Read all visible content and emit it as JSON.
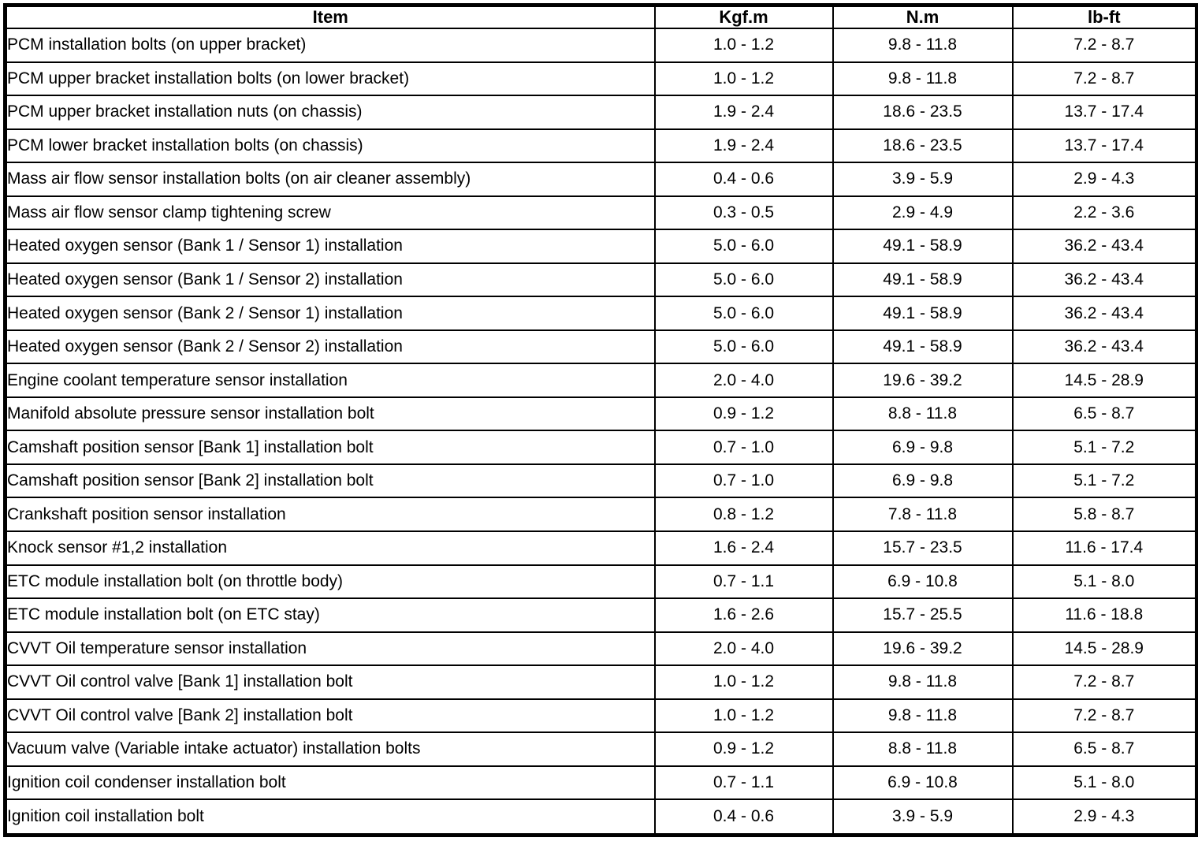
{
  "table": {
    "columns": [
      {
        "key": "item",
        "label": "Item"
      },
      {
        "key": "kgfm",
        "label": "Kgf.m"
      },
      {
        "key": "nm",
        "label": "N.m"
      },
      {
        "key": "lbft",
        "label": "lb-ft"
      }
    ],
    "rows": [
      {
        "item": "PCM installation bolts (on upper bracket)",
        "kgfm": "1.0 - 1.2",
        "nm": "9.8 - 11.8",
        "lbft": "7.2 - 8.7"
      },
      {
        "item": "PCM upper bracket installation bolts (on lower bracket)",
        "kgfm": "1.0 - 1.2",
        "nm": "9.8 - 11.8",
        "lbft": "7.2 - 8.7"
      },
      {
        "item": "PCM upper bracket installation nuts (on chassis)",
        "kgfm": "1.9 - 2.4",
        "nm": "18.6 - 23.5",
        "lbft": "13.7 - 17.4"
      },
      {
        "item": "PCM lower bracket installation bolts (on chassis)",
        "kgfm": "1.9 - 2.4",
        "nm": "18.6 - 23.5",
        "lbft": "13.7 - 17.4"
      },
      {
        "item": "Mass air flow sensor installation bolts (on air cleaner assembly)",
        "kgfm": "0.4 - 0.6",
        "nm": "3.9 - 5.9",
        "lbft": "2.9 - 4.3"
      },
      {
        "item": "Mass air flow sensor clamp tightening screw",
        "kgfm": "0.3 - 0.5",
        "nm": "2.9 - 4.9",
        "lbft": "2.2 - 3.6"
      },
      {
        "item": "Heated oxygen sensor (Bank 1 / Sensor 1) installation",
        "kgfm": "5.0 - 6.0",
        "nm": "49.1 - 58.9",
        "lbft": "36.2 - 43.4"
      },
      {
        "item": "Heated oxygen sensor (Bank 1 / Sensor 2) installation",
        "kgfm": "5.0 - 6.0",
        "nm": "49.1 - 58.9",
        "lbft": "36.2 - 43.4"
      },
      {
        "item": "Heated oxygen sensor (Bank 2 / Sensor 1) installation",
        "kgfm": "5.0 - 6.0",
        "nm": "49.1 - 58.9",
        "lbft": "36.2 - 43.4"
      },
      {
        "item": "Heated oxygen sensor (Bank 2 / Sensor 2) installation",
        "kgfm": "5.0 - 6.0",
        "nm": "49.1 - 58.9",
        "lbft": "36.2 - 43.4"
      },
      {
        "item": "Engine coolant temperature sensor installation",
        "kgfm": "2.0 - 4.0",
        "nm": "19.6 - 39.2",
        "lbft": "14.5 - 28.9"
      },
      {
        "item": "Manifold absolute pressure sensor installation bolt",
        "kgfm": "0.9 - 1.2",
        "nm": "8.8 - 11.8",
        "lbft": "6.5 - 8.7"
      },
      {
        "item": "Camshaft position sensor [Bank 1] installation bolt",
        "kgfm": "0.7 - 1.0",
        "nm": "6.9 - 9.8",
        "lbft": "5.1 - 7.2"
      },
      {
        "item": "Camshaft position sensor [Bank 2] installation bolt",
        "kgfm": "0.7 - 1.0",
        "nm": "6.9 - 9.8",
        "lbft": "5.1 - 7.2"
      },
      {
        "item": "Crankshaft position sensor installation",
        "kgfm": "0.8 - 1.2",
        "nm": "7.8 - 11.8",
        "lbft": "5.8 - 8.7"
      },
      {
        "item": "Knock sensor #1,2 installation",
        "kgfm": "1.6 - 2.4",
        "nm": "15.7 - 23.5",
        "lbft": "11.6 - 17.4"
      },
      {
        "item": "ETC module installation bolt (on throttle body)",
        "kgfm": "0.7 - 1.1",
        "nm": "6.9 - 10.8",
        "lbft": "5.1 - 8.0"
      },
      {
        "item": "ETC module installation bolt (on ETC stay)",
        "kgfm": "1.6 - 2.6",
        "nm": "15.7 - 25.5",
        "lbft": "11.6 - 18.8"
      },
      {
        "item": "CVVT Oil temperature sensor installation",
        "kgfm": "2.0 - 4.0",
        "nm": "19.6 - 39.2",
        "lbft": "14.5 - 28.9"
      },
      {
        "item": "CVVT Oil control valve [Bank 1] installation bolt",
        "kgfm": "1.0 - 1.2",
        "nm": "9.8 - 11.8",
        "lbft": "7.2 - 8.7"
      },
      {
        "item": "CVVT Oil control valve [Bank 2] installation bolt",
        "kgfm": "1.0 - 1.2",
        "nm": "9.8 - 11.8",
        "lbft": "7.2 - 8.7"
      },
      {
        "item": "Vacuum valve (Variable intake actuator) installation bolts",
        "kgfm": "0.9 - 1.2",
        "nm": "8.8 - 11.8",
        "lbft": "6.5 - 8.7"
      },
      {
        "item": "Ignition coil condenser installation bolt",
        "kgfm": "0.7 - 1.1",
        "nm": "6.9 - 10.8",
        "lbft": "5.1 - 8.0"
      },
      {
        "item": "Ignition coil installation bolt",
        "kgfm": "0.4 - 0.6",
        "nm": "3.9 - 5.9",
        "lbft": "2.9 - 4.3"
      }
    ],
    "colors": {
      "border": "#000000",
      "background": "#ffffff",
      "text": "#000000"
    }
  }
}
